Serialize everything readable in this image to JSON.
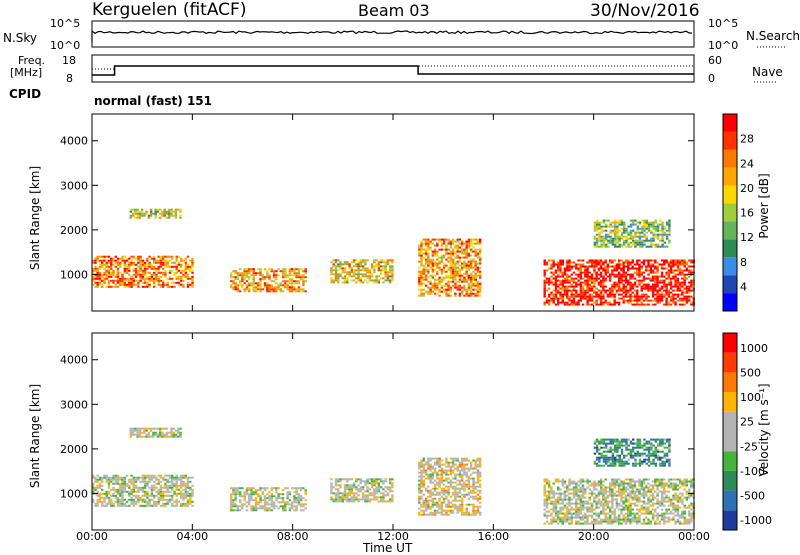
{
  "header": {
    "station": "Kerguelen (fitACF)",
    "beam": "Beam 03",
    "date": "30/Nov/2016"
  },
  "top_panels": {
    "nsky_label": "N.Sky",
    "nsky_tick_top": "10^5",
    "nsky_tick_bottom": "10^0",
    "nsearch_label": "N.Search",
    "nsearch_tick_top": "10^5",
    "nsearch_tick_bottom": "10^0",
    "freq_label_1": "Freq.",
    "freq_label_2": "[MHz]",
    "freq_tick_top": "18",
    "freq_tick_bottom": "8",
    "nave_label": "Nave",
    "nave_tick_top": "60",
    "nave_tick_bottom": "0",
    "cpid_label": "CPID",
    "cpid_value": "normal (fast) 151"
  },
  "chart_data": [
    {
      "type": "heatmap",
      "quantity": "Power",
      "ylabel": "Slant Range [km]",
      "ylim": [
        180,
        4600
      ],
      "y_ticks": [
        "1000",
        "2000",
        "3000",
        "4000"
      ],
      "x_ticks": [
        "00:00",
        "04:00",
        "08:00",
        "12:00",
        "16:00",
        "20:00",
        "00:00"
      ],
      "xlabel": "Time UT",
      "colorbar": {
        "label": "Power [dB]",
        "ticks": [
          "4",
          "8",
          "12",
          "16",
          "20",
          "24",
          "28"
        ],
        "colors": [
          "#0000ff",
          "#1e46b4",
          "#3c8ce6",
          "#2e8b57",
          "#64b45a",
          "#a0cd3c",
          "#ffd700",
          "#ffa500",
          "#ff7800",
          "#ff3200",
          "#ff0000"
        ]
      },
      "echo_regions": [
        {
          "t0": 0.0,
          "t1": 4.0,
          "r0": 700,
          "r1": 1400,
          "level": 0.75
        },
        {
          "t0": 1.5,
          "t1": 3.5,
          "r0": 2250,
          "r1": 2450,
          "level": 0.55
        },
        {
          "t0": 5.5,
          "t1": 8.5,
          "r0": 600,
          "r1": 1100,
          "level": 0.7
        },
        {
          "t0": 9.5,
          "t1": 12.0,
          "r0": 800,
          "r1": 1300,
          "level": 0.6
        },
        {
          "t0": 13.0,
          "t1": 15.5,
          "r0": 500,
          "r1": 1800,
          "level": 0.7
        },
        {
          "t0": 18.0,
          "t1": 24.0,
          "r0": 300,
          "r1": 1300,
          "level": 0.95
        },
        {
          "t0": 20.0,
          "t1": 23.0,
          "r0": 1600,
          "r1": 2200,
          "level": 0.45
        }
      ]
    },
    {
      "type": "heatmap",
      "quantity": "Velocity",
      "ylabel": "Slant Range [km]",
      "ylim": [
        180,
        4600
      ],
      "y_ticks": [
        "1000",
        "2000",
        "3000",
        "4000"
      ],
      "x_ticks": [
        "00:00",
        "04:00",
        "08:00",
        "12:00",
        "16:00",
        "20:00",
        "00:00"
      ],
      "xlabel": "Time UT",
      "colorbar": {
        "label": "Velocity [m s⁻¹]",
        "ticks": [
          "1000",
          "500",
          "100",
          "25",
          "-25",
          "-100",
          "-500",
          "-1000"
        ],
        "colors": [
          "#1e3ca0",
          "#2f6fb4",
          "#2e8b57",
          "#46b43c",
          "#b4b4b4",
          "#b4b4b4",
          "#ffb400",
          "#ff7800",
          "#ff3c00",
          "#ff0000"
        ]
      },
      "echo_regions": [
        {
          "t0": 0.0,
          "t1": 4.0,
          "r0": 700,
          "r1": 1400,
          "level": 0.5
        },
        {
          "t0": 1.5,
          "t1": 3.5,
          "r0": 2250,
          "r1": 2450,
          "level": 0.5
        },
        {
          "t0": 5.5,
          "t1": 8.5,
          "r0": 600,
          "r1": 1100,
          "level": 0.5
        },
        {
          "t0": 9.5,
          "t1": 12.0,
          "r0": 800,
          "r1": 1300,
          "level": 0.5
        },
        {
          "t0": 13.0,
          "t1": 15.5,
          "r0": 500,
          "r1": 1800,
          "level": 0.55
        },
        {
          "t0": 18.0,
          "t1": 24.0,
          "r0": 300,
          "r1": 1300,
          "level": 0.5
        },
        {
          "t0": 20.0,
          "t1": 23.0,
          "r0": 1600,
          "r1": 2200,
          "level": 0.25
        }
      ]
    }
  ]
}
